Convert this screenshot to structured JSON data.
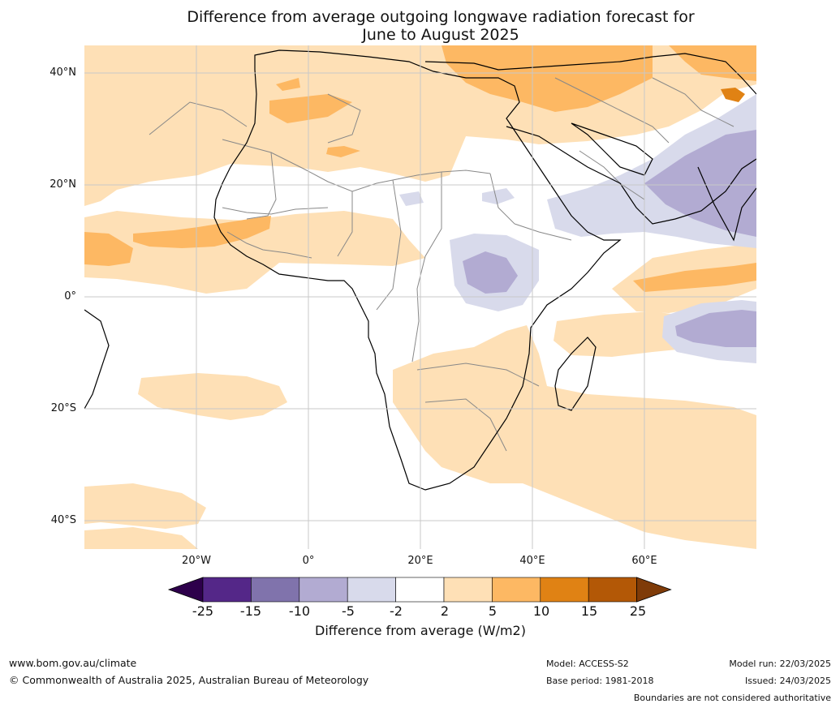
{
  "title_line1": "Difference from average outgoing longwave radiation forecast for",
  "title_line2": "June to August 2025",
  "lat_labels": [
    "40°N",
    "20°N",
    "0°",
    "20°S",
    "40°S"
  ],
  "lon_labels": [
    "20°W",
    "0°",
    "20°E",
    "40°E",
    "60°E"
  ],
  "legend": {
    "ticks": [
      "-25",
      "-15",
      "-10",
      "-5",
      "-2",
      "2",
      "5",
      "10",
      "15",
      "25"
    ],
    "colors": [
      "#2d004b",
      "#542788",
      "#8073ac",
      "#b2abd2",
      "#d8daeb",
      "#ffffff",
      "#fee0b6",
      "#fdb863",
      "#e08214",
      "#b35806",
      "#7f3b08"
    ],
    "label": "Difference from average (W/m2)"
  },
  "footer": {
    "website": "www.bom.gov.au/climate",
    "copyright": "© Commonwealth of Australia 2025, Australian Bureau of Meteorology",
    "model": "Model: ACCESS-S2",
    "base_period": "Base period: 1981-2018",
    "model_run": "Model run: 22/03/2025",
    "issued": "Issued: 24/03/2025",
    "disclaimer": "Boundaries are not considered authoritative"
  }
}
